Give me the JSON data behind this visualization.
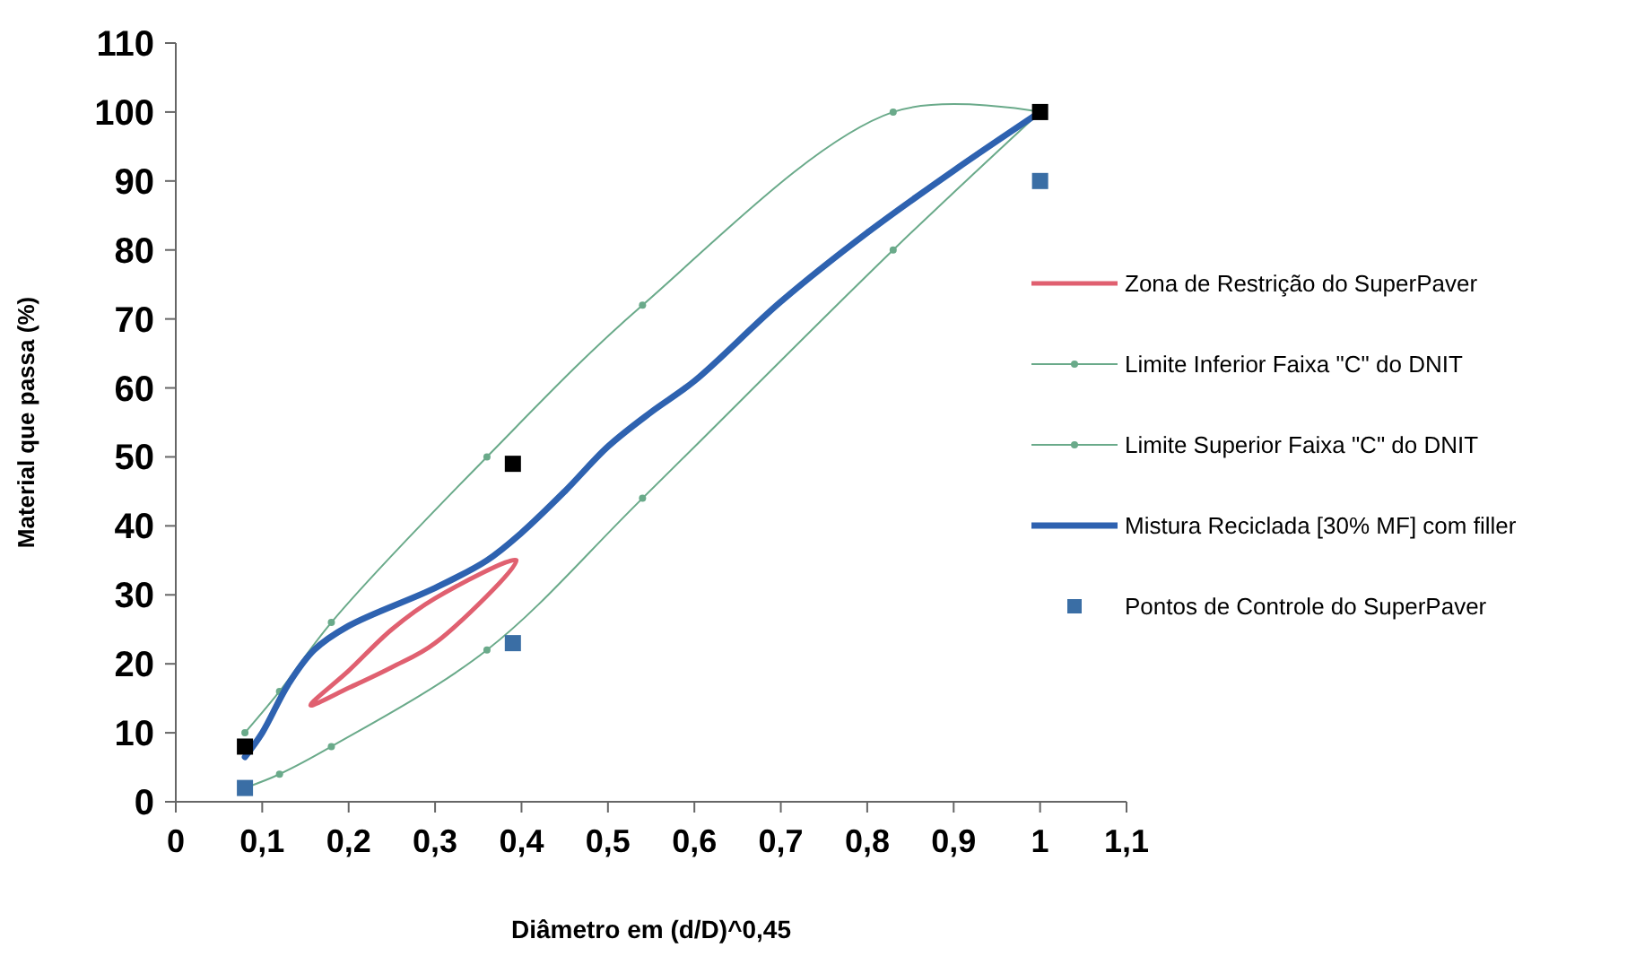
{
  "chart_data": {
    "type": "line",
    "xlabel": "Diâmetro em (d/D)^0,45",
    "ylabel": "Material que passa (%)",
    "xlim": [
      0,
      1.1
    ],
    "xticks": [
      {
        "value": 0,
        "label": "0"
      },
      {
        "value": 0.1,
        "label": "0,1"
      },
      {
        "value": 0.2,
        "label": "0,2"
      },
      {
        "value": 0.3,
        "label": "0,3"
      },
      {
        "value": 0.4,
        "label": "0,4"
      },
      {
        "value": 0.5,
        "label": "0,5"
      },
      {
        "value": 0.6,
        "label": "0,6"
      },
      {
        "value": 0.7,
        "label": "0,7"
      },
      {
        "value": 0.8,
        "label": "0,8"
      },
      {
        "value": 0.9,
        "label": "0,9"
      },
      {
        "value": 1,
        "label": "1"
      },
      {
        "value": 1.1,
        "label": "1,1"
      }
    ],
    "ylim": [
      0,
      110
    ],
    "yticks": [
      0,
      10,
      20,
      30,
      40,
      50,
      60,
      70,
      80,
      90,
      100,
      110
    ],
    "grid": false,
    "legend": "right",
    "annotations": [
      "Zona de Restrição do SuperPaver"
    ],
    "series": [
      {
        "name": "Limite Inferior Faixa \"C\" do DNIT",
        "color": "#6aaa8a",
        "marker": "circle",
        "x": [
          0.08,
          0.12,
          0.18,
          0.36,
          0.54,
          0.83,
          1
        ],
        "values": [
          2,
          4,
          8,
          22,
          44,
          80,
          100
        ]
      },
      {
        "name": "Limite Superior Faixa \"C\" do DNIT",
        "color": "#6aaa8a",
        "marker": "circle",
        "x": [
          0.08,
          0.12,
          0.18,
          0.36,
          0.54,
          0.83,
          1
        ],
        "values": [
          10,
          16,
          26,
          50,
          72,
          100,
          100
        ]
      },
      {
        "name": "Mistura Reciclada [30% MF] com filler",
        "color": "#2e62b0",
        "marker": "none",
        "x": [
          0.08,
          0.1,
          0.13,
          0.16,
          0.2,
          0.3,
          0.36,
          0.4,
          0.45,
          0.5,
          0.55,
          0.6,
          0.7,
          0.8,
          0.9,
          1
        ],
        "values": [
          6.5,
          10,
          17,
          22,
          25.5,
          31,
          35,
          39,
          45,
          51.5,
          56.5,
          61,
          72.5,
          82.5,
          91.5,
          100
        ]
      },
      {
        "name": "Pontos de Controle do SuperPaver",
        "type": "scatter",
        "color": "#3a6ea5",
        "marker": "square",
        "x": [
          0.08,
          0.39,
          1
        ],
        "values": [
          2,
          23,
          90
        ]
      },
      {
        "type": "scatter",
        "color": "#000000",
        "marker": "square",
        "x": [
          0.08,
          0.39,
          1
        ],
        "values": [
          8,
          49,
          100
        ]
      }
    ]
  }
}
